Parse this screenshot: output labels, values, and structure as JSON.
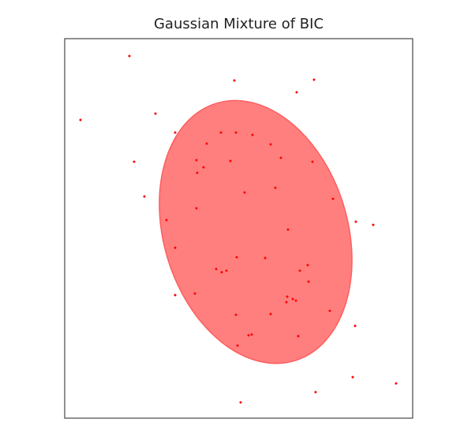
{
  "chart_data": {
    "type": "scatter",
    "title": "Gaussian Mixture of BIC",
    "xlabel": "",
    "ylabel": "",
    "xlim": [
      0,
      441
    ],
    "ylim": [
      0,
      481
    ],
    "show_ticks": false,
    "grid": false,
    "colors": {
      "points": "#ff0000",
      "ellipse_fill": "#ff7f7f",
      "ellipse_edge": "#ff5e5e",
      "axes": "#222222"
    },
    "ellipse": {
      "center": [
        242,
        236
      ],
      "width": 233,
      "height": 341,
      "angle_deg": -17
    },
    "points": [
      [
        20,
        378
      ],
      [
        82,
        459
      ],
      [
        115,
        386
      ],
      [
        88,
        325
      ],
      [
        215,
        428
      ],
      [
        316,
        429
      ],
      [
        294,
        413
      ],
      [
        140,
        362
      ],
      [
        167,
        327
      ],
      [
        198,
        362
      ],
      [
        217,
        362
      ],
      [
        238,
        359
      ],
      [
        180,
        348
      ],
      [
        210,
        326
      ],
      [
        261,
        347
      ],
      [
        274,
        330
      ],
      [
        168,
        311
      ],
      [
        176,
        318
      ],
      [
        228,
        286
      ],
      [
        314,
        325
      ],
      [
        267,
        292
      ],
      [
        340,
        278
      ],
      [
        167,
        266
      ],
      [
        129,
        251
      ],
      [
        140,
        216
      ],
      [
        283,
        239
      ],
      [
        218,
        204
      ],
      [
        192,
        189
      ],
      [
        205,
        187
      ],
      [
        199,
        185
      ],
      [
        254,
        203
      ],
      [
        298,
        187
      ],
      [
        308,
        194
      ],
      [
        165,
        158
      ],
      [
        282,
        154
      ],
      [
        289,
        151
      ],
      [
        293,
        149
      ],
      [
        281,
        147
      ],
      [
        309,
        173
      ],
      [
        336,
        136
      ],
      [
        368,
        117
      ],
      [
        369,
        249
      ],
      [
        391,
        245
      ],
      [
        261,
        132
      ],
      [
        296,
        104
      ],
      [
        217,
        131
      ],
      [
        237,
        106
      ],
      [
        233,
        105
      ],
      [
        219,
        92
      ],
      [
        365,
        52
      ],
      [
        318,
        33
      ],
      [
        420,
        44
      ],
      [
        223,
        20
      ],
      [
        101,
        281
      ],
      [
        140,
        156
      ]
    ]
  }
}
